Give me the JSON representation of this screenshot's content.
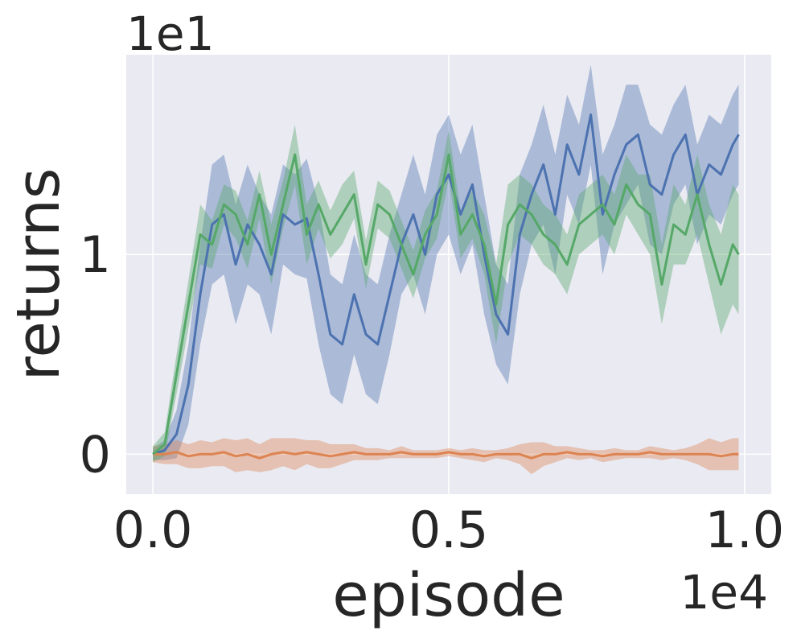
{
  "chart_data": {
    "type": "line",
    "title": "",
    "xlabel": "episode",
    "ylabel": "returns",
    "x_offset_label": "1e4",
    "y_offset_label": "1e1",
    "xlim": [
      -0.045,
      1.045
    ],
    "ylim": [
      -0.2,
      2.0
    ],
    "x_ticks": [
      0.0,
      0.5,
      1.0
    ],
    "x_tick_labels": [
      "0.0",
      "0.5",
      "1.0"
    ],
    "y_ticks": [
      0.0,
      1.0
    ],
    "y_tick_labels": [
      "0",
      "1"
    ],
    "grid": true,
    "background": "#eaeaf2",
    "x": [
      0.0,
      0.02,
      0.04,
      0.06,
      0.08,
      0.1,
      0.12,
      0.14,
      0.16,
      0.18,
      0.2,
      0.22,
      0.24,
      0.26,
      0.28,
      0.3,
      0.32,
      0.34,
      0.36,
      0.38,
      0.4,
      0.42,
      0.44,
      0.46,
      0.48,
      0.5,
      0.52,
      0.54,
      0.56,
      0.58,
      0.6,
      0.62,
      0.64,
      0.66,
      0.68,
      0.7,
      0.72,
      0.74,
      0.76,
      0.78,
      0.8,
      0.82,
      0.84,
      0.86,
      0.88,
      0.9,
      0.92,
      0.94,
      0.96,
      0.98,
      0.99
    ],
    "series": [
      {
        "color": "#4c72b0",
        "values": [
          0.0,
          0.02,
          0.1,
          0.35,
          0.8,
          1.15,
          1.2,
          0.95,
          1.15,
          1.05,
          0.9,
          1.2,
          1.15,
          1.18,
          0.9,
          0.6,
          0.55,
          0.8,
          0.6,
          0.55,
          0.8,
          1.05,
          1.2,
          1.0,
          1.3,
          1.4,
          1.2,
          1.35,
          1.0,
          0.7,
          0.6,
          1.1,
          1.3,
          1.45,
          1.2,
          1.55,
          1.4,
          1.7,
          1.2,
          1.4,
          1.55,
          1.6,
          1.35,
          1.3,
          1.5,
          1.6,
          1.3,
          1.45,
          1.4,
          1.55,
          1.6
        ],
        "band": [
          0.03,
          0.05,
          0.12,
          0.2,
          0.25,
          0.3,
          0.3,
          0.3,
          0.3,
          0.25,
          0.3,
          0.25,
          0.25,
          0.3,
          0.35,
          0.3,
          0.3,
          0.3,
          0.3,
          0.3,
          0.3,
          0.25,
          0.3,
          0.3,
          0.3,
          0.3,
          0.3,
          0.3,
          0.3,
          0.25,
          0.25,
          0.3,
          0.25,
          0.3,
          0.3,
          0.25,
          0.25,
          0.25,
          0.3,
          0.25,
          0.3,
          0.25,
          0.3,
          0.3,
          0.25,
          0.25,
          0.25,
          0.25,
          0.25,
          0.25,
          0.25
        ]
      },
      {
        "color": "#dd8452",
        "values": [
          0.0,
          0.0,
          0.01,
          -0.01,
          0.0,
          0.0,
          0.01,
          -0.01,
          0.0,
          -0.02,
          0.0,
          0.01,
          0.0,
          0.01,
          0.0,
          -0.01,
          0.0,
          0.01,
          0.0,
          0.0,
          0.0,
          0.01,
          0.0,
          0.0,
          0.0,
          0.01,
          0.0,
          0.0,
          -0.01,
          0.0,
          0.0,
          0.0,
          -0.02,
          0.0,
          0.0,
          0.01,
          0.0,
          0.0,
          -0.01,
          0.0,
          0.0,
          0.0,
          0.01,
          0.0,
          0.0,
          0.0,
          0.0,
          0.0,
          -0.01,
          0.0,
          0.0
        ],
        "band": [
          0.04,
          0.05,
          0.06,
          0.06,
          0.07,
          0.06,
          0.07,
          0.08,
          0.08,
          0.07,
          0.08,
          0.07,
          0.08,
          0.06,
          0.07,
          0.06,
          0.05,
          0.04,
          0.03,
          0.03,
          0.02,
          0.03,
          0.02,
          0.02,
          0.02,
          0.02,
          0.02,
          0.03,
          0.03,
          0.02,
          0.03,
          0.05,
          0.08,
          0.06,
          0.04,
          0.03,
          0.03,
          0.02,
          0.03,
          0.03,
          0.02,
          0.02,
          0.03,
          0.03,
          0.02,
          0.03,
          0.05,
          0.08,
          0.07,
          0.08,
          0.08
        ]
      },
      {
        "color": "#55a868",
        "values": [
          0.0,
          0.05,
          0.4,
          0.75,
          1.1,
          1.05,
          1.25,
          1.2,
          1.05,
          1.3,
          1.0,
          1.25,
          1.5,
          1.1,
          1.25,
          1.1,
          1.2,
          1.3,
          0.95,
          1.25,
          1.2,
          1.05,
          0.9,
          1.1,
          1.2,
          1.5,
          1.1,
          1.2,
          1.05,
          0.75,
          1.15,
          1.25,
          1.2,
          1.1,
          1.05,
          0.95,
          1.15,
          1.2,
          1.25,
          1.15,
          1.35,
          1.25,
          1.2,
          0.85,
          1.15,
          1.1,
          1.3,
          1.05,
          0.85,
          1.05,
          1.0
        ],
        "band": [
          0.04,
          0.06,
          0.1,
          0.12,
          0.15,
          0.12,
          0.1,
          0.12,
          0.12,
          0.12,
          0.15,
          0.12,
          0.15,
          0.15,
          0.12,
          0.12,
          0.15,
          0.12,
          0.12,
          0.12,
          0.12,
          0.12,
          0.12,
          0.12,
          0.12,
          0.12,
          0.12,
          0.12,
          0.15,
          0.2,
          0.2,
          0.15,
          0.15,
          0.15,
          0.15,
          0.15,
          0.15,
          0.15,
          0.15,
          0.15,
          0.15,
          0.15,
          0.2,
          0.2,
          0.2,
          0.15,
          0.2,
          0.2,
          0.25,
          0.3,
          0.3
        ]
      }
    ]
  }
}
